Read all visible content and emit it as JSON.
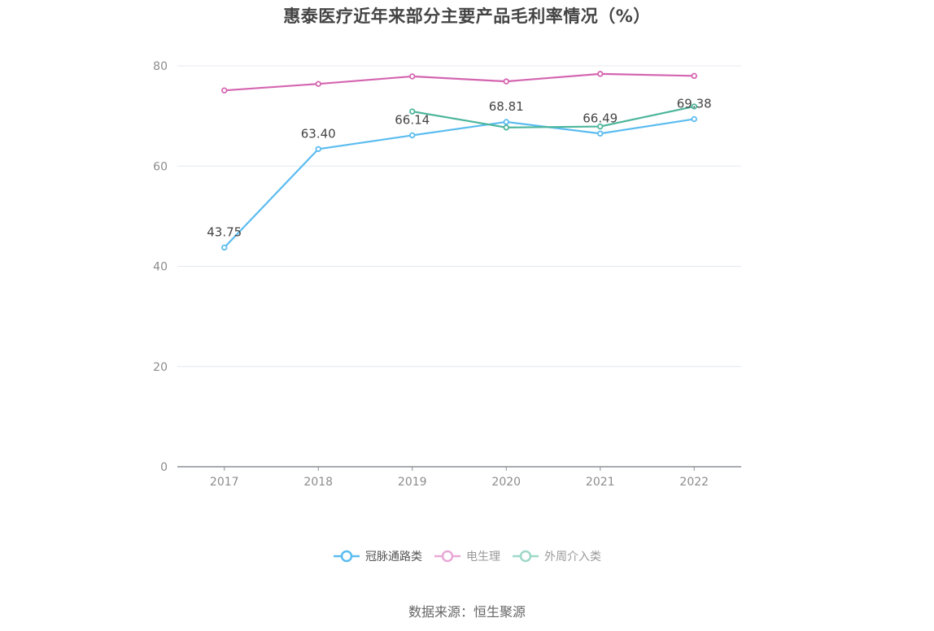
{
  "title": "惠泰医疗近年来部分主要产品毛利率情况（%）",
  "source": "数据来源：恒生聚源",
  "colors": {
    "series_0": "#5bbcf0",
    "series_1": "#d465b0",
    "series_2": "#4cb59b",
    "grid": "#e4e8f2",
    "axis": "#8c8f96",
    "tick_label": "#8c8c8c",
    "data_label": "#444444"
  },
  "legend": [
    {
      "name": "冠脉通路类",
      "color": "#5bbcf0",
      "text_color": "#555555"
    },
    {
      "name": "电生理",
      "color": "#e8a8d6",
      "text_color": "#9a9a9a"
    },
    {
      "name": "外周介入类",
      "color": "#9ed8c8",
      "text_color": "#9a9a9a"
    }
  ],
  "chart_data": {
    "type": "line",
    "title": "惠泰医疗近年来部分主要产品毛利率情况（%）",
    "xlabel": "",
    "ylabel": "",
    "categories": [
      "2017",
      "2018",
      "2019",
      "2020",
      "2021",
      "2022"
    ],
    "ylim": [
      0,
      80
    ],
    "yticks": [
      0,
      20,
      40,
      60,
      80
    ],
    "grid": true,
    "legend_position": "bottom",
    "series": [
      {
        "name": "冠脉通路类",
        "values": [
          43.75,
          63.4,
          66.14,
          68.81,
          66.49,
          69.38
        ],
        "labels_shown": true
      },
      {
        "name": "电生理",
        "values": [
          75.1,
          76.4,
          77.9,
          76.9,
          78.4,
          78.0
        ],
        "labels_shown": false
      },
      {
        "name": "外周介入类",
        "values": [
          null,
          null,
          70.9,
          67.7,
          67.9,
          71.9
        ],
        "labels_shown": false
      }
    ]
  }
}
